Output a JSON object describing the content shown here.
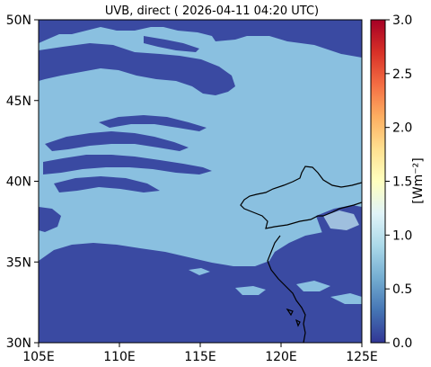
{
  "chart_data": {
    "type": "heatmap",
    "title": "UVB, direct ( 2026-04-11 04:20 UTC)",
    "x_ticks": [
      "105E",
      "110E",
      "115E",
      "120E",
      "125E"
    ],
    "x_tick_values": [
      105,
      110,
      115,
      120,
      125
    ],
    "y_ticks": [
      "30N",
      "35N",
      "40N",
      "45N",
      "50N"
    ],
    "y_tick_values": [
      30,
      35,
      40,
      45,
      50
    ],
    "xlim": [
      105,
      125
    ],
    "ylim": [
      30,
      50
    ],
    "colorbar": {
      "label": "[Wm⁻²]",
      "ticks": [
        "0.0",
        "0.5",
        "1.0",
        "1.5",
        "2.0",
        "2.5",
        "3.0"
      ],
      "tick_values": [
        0,
        0.5,
        1.0,
        1.5,
        2.0,
        2.5,
        3.0
      ],
      "range": [
        0,
        3.0
      ],
      "colormap": "RdYlBu_r"
    },
    "field_values": {
      "clear_sky": 0.75,
      "cloud": 0.0,
      "peak_near_coast": 1.0
    },
    "colors": {
      "clear_sky": "#8ac0e0",
      "cloud": "#3a4aa2"
    },
    "coastline_color": "#000000"
  }
}
